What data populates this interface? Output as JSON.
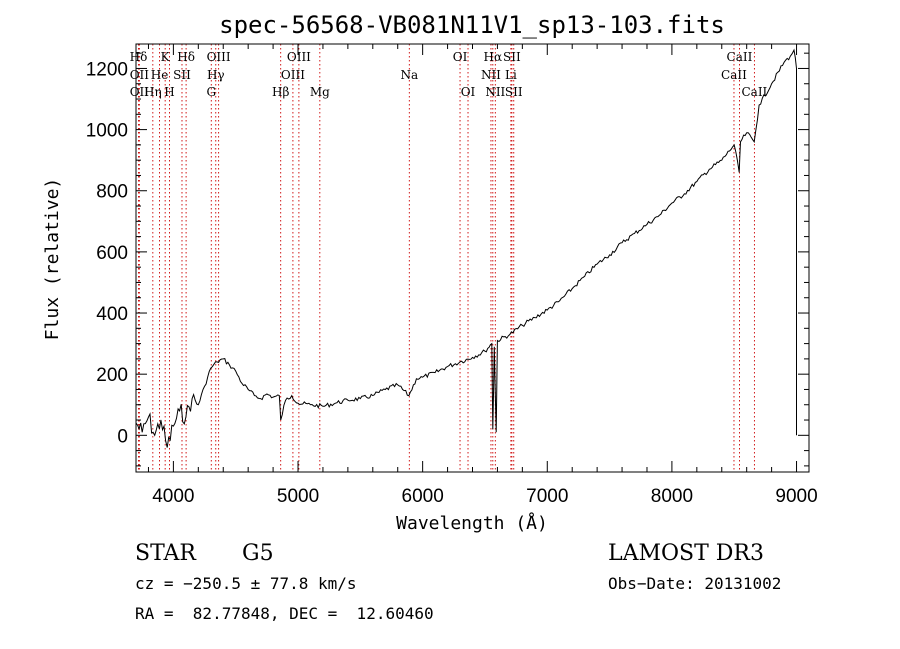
{
  "chart_data": {
    "type": "line",
    "title": "spec-56568-VB081N11V1_sp13-103.fits",
    "xlabel": "Wavelength (Å)",
    "ylabel": "Flux (relative)",
    "xlim": [
      3700,
      9100
    ],
    "ylim": [
      -120,
      1280
    ],
    "x_ticks": [
      4000,
      5000,
      6000,
      7000,
      8000,
      9000
    ],
    "y_ticks": [
      0,
      200,
      400,
      600,
      800,
      1000,
      1200
    ],
    "x_tick_labels": [
      "4000",
      "5000",
      "6000",
      "7000",
      "8000",
      "9000"
    ],
    "y_tick_labels": [
      "0",
      "200",
      "400",
      "600",
      "800",
      "1000",
      "1200"
    ],
    "line_color": "#000000",
    "marker_color": "#cc0000",
    "spectrum": {
      "x": [
        3700,
        3750,
        3800,
        3850,
        3900,
        3950,
        4000,
        4050,
        4100,
        4150,
        4200,
        4250,
        4300,
        4350,
        4400,
        4450,
        4500,
        4550,
        4600,
        4650,
        4700,
        4750,
        4800,
        4850,
        4861,
        4900,
        4950,
        5000,
        5100,
        5200,
        5300,
        5400,
        5500,
        5600,
        5700,
        5800,
        5890,
        5950,
        6000,
        6100,
        6200,
        6300,
        6400,
        6500,
        6555,
        6563,
        6575,
        6590,
        6600,
        6700,
        6800,
        6900,
        7000,
        7100,
        7200,
        7300,
        7400,
        7500,
        7600,
        7700,
        7800,
        7900,
        8000,
        8100,
        8200,
        8300,
        8400,
        8500,
        8540,
        8550,
        8600,
        8660,
        8700,
        8800,
        8900,
        8950,
        8980,
        9000
      ],
      "y": [
        40,
        10,
        60,
        0,
        50,
        -40,
        30,
        80,
        60,
        120,
        100,
        160,
        220,
        240,
        250,
        230,
        210,
        170,
        150,
        130,
        120,
        135,
        125,
        130,
        50,
        115,
        130,
        105,
        100,
        95,
        105,
        115,
        120,
        130,
        150,
        165,
        130,
        185,
        190,
        205,
        225,
        240,
        255,
        275,
        300,
        20,
        290,
        10,
        310,
        330,
        360,
        385,
        410,
        440,
        480,
        520,
        560,
        590,
        630,
        660,
        690,
        720,
        760,
        790,
        830,
        870,
        900,
        950,
        860,
        960,
        990,
        960,
        1080,
        1150,
        1220,
        1240,
        1260,
        1200
      ]
    },
    "line_markers": [
      {
        "label": "Hδ",
        "x": 3720,
        "row": 0
      },
      {
        "label": "K",
        "x": 3934,
        "row": 0
      },
      {
        "label": "Hδ",
        "x": 4102,
        "row": 0
      },
      {
        "label": "OIII",
        "x": 4363,
        "row": 0
      },
      {
        "label": "OIII",
        "x": 5007,
        "row": 0
      },
      {
        "label": "OI",
        "x": 6300,
        "row": 0
      },
      {
        "label": "Hα",
        "x": 6563,
        "row": 0
      },
      {
        "label": "SII",
        "x": 6716,
        "row": 0
      },
      {
        "label": "CaII",
        "x": 8542,
        "row": 0
      },
      {
        "label": "OII",
        "x": 3727,
        "row": 1
      },
      {
        "label": "He",
        "x": 3889,
        "row": 1
      },
      {
        "label": "SII",
        "x": 4069,
        "row": 1
      },
      {
        "label": "Hγ",
        "x": 4340,
        "row": 1
      },
      {
        "label": "OIII",
        "x": 4959,
        "row": 1
      },
      {
        "label": "Na",
        "x": 5893,
        "row": 1
      },
      {
        "label": "NII",
        "x": 6548,
        "row": 1
      },
      {
        "label": "Li",
        "x": 6708,
        "row": 1
      },
      {
        "label": "CaII",
        "x": 8498,
        "row": 1
      },
      {
        "label": "OII",
        "x": 3727,
        "row": 2
      },
      {
        "label": "Hη",
        "x": 3835,
        "row": 2
      },
      {
        "label": "H",
        "x": 3969,
        "row": 2
      },
      {
        "label": "G",
        "x": 4304,
        "row": 2
      },
      {
        "label": "Hβ",
        "x": 4861,
        "row": 2
      },
      {
        "label": "Mg",
        "x": 5175,
        "row": 2
      },
      {
        "label": "OI",
        "x": 6364,
        "row": 2
      },
      {
        "label": "NII",
        "x": 6583,
        "row": 2
      },
      {
        "label": "SII",
        "x": 6731,
        "row": 2
      },
      {
        "label": "CaII",
        "x": 8662,
        "row": 2
      }
    ]
  },
  "info": {
    "object_class": "STAR",
    "subclass": "G5",
    "survey": "LAMOST DR3",
    "cz": "cz = −250.5 ± 77.8 km/s",
    "obs_date": "Obs−Date: 20131002",
    "coords": "RA =  82.77848, DEC =  12.60460"
  }
}
